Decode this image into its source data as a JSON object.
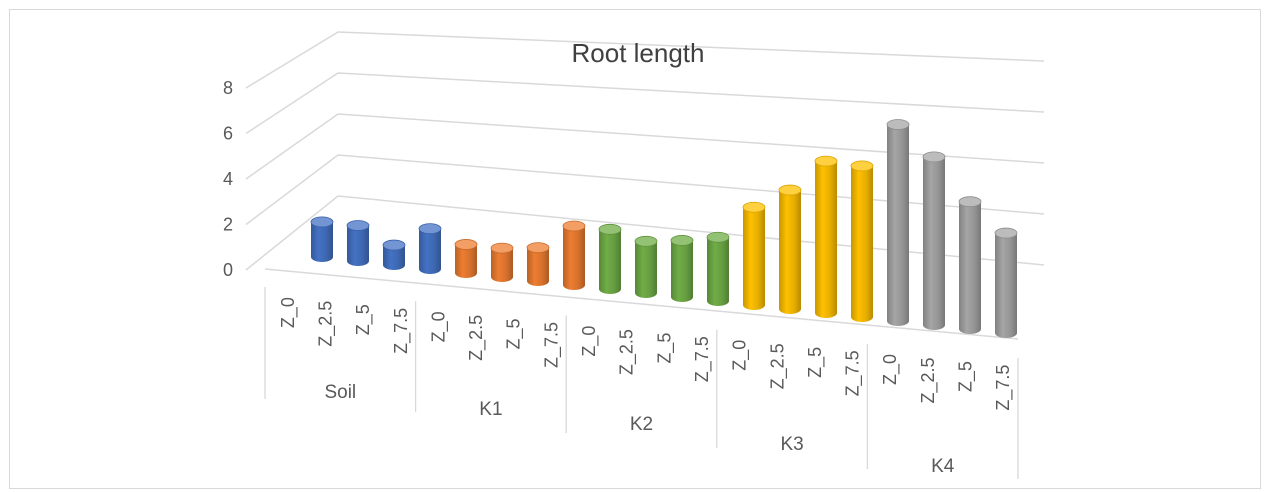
{
  "chart_data": {
    "type": "bar",
    "style": "3d-cylinder",
    "title": "Root length",
    "xlabel": "",
    "ylabel": "",
    "ylim": [
      0,
      8
    ],
    "yticks": [
      "0",
      "2",
      "4",
      "6",
      "8"
    ],
    "grid": true,
    "legend": "none",
    "groups": [
      {
        "label": "Soil",
        "color": "#4472c4",
        "categories": [
          "Z_0",
          "Z_2.5",
          "Z_5",
          "Z_7.5"
        ],
        "values": [
          1.8,
          1.8,
          1.0,
          2.0
        ]
      },
      {
        "label": "K1",
        "color": "#ed7d31",
        "categories": [
          "Z_0",
          "Z_2.5",
          "Z_5",
          "Z_7.5"
        ],
        "values": [
          1.4,
          1.4,
          1.6,
          2.8
        ]
      },
      {
        "label": "K2",
        "color": "#70ad47",
        "categories": [
          "Z_0",
          "Z_2.5",
          "Z_5",
          "Z_7.5"
        ],
        "values": [
          2.8,
          2.4,
          2.6,
          2.9
        ]
      },
      {
        "label": "K3",
        "color": "#ffc000",
        "categories": [
          "Z_0",
          "Z_2.5",
          "Z_5",
          "Z_7.5"
        ],
        "values": [
          4.4,
          5.3,
          6.7,
          6.6
        ]
      },
      {
        "label": "K4",
        "color": "#a5a5a5",
        "categories": [
          "Z_0",
          "Z_2.5",
          "Z_5",
          "Z_7.5"
        ],
        "values": [
          8.5,
          7.2,
          5.4,
          4.2
        ]
      }
    ]
  }
}
